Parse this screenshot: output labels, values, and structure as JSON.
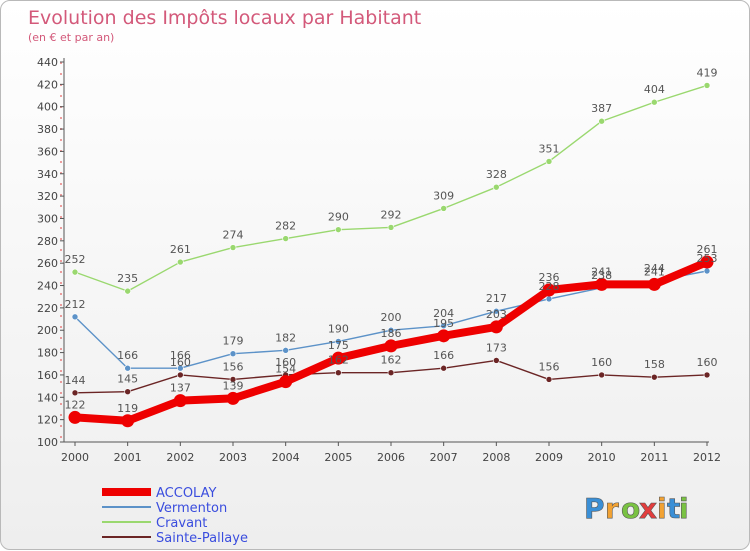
{
  "chart_data": {
    "type": "line",
    "title": "Evolution des Impôts locaux par Habitant",
    "subtitle": "(en € et par an)",
    "x": [
      "2000",
      "2001",
      "2002",
      "2003",
      "2004",
      "2005",
      "2006",
      "2007",
      "2008",
      "2009",
      "2010",
      "2011",
      "2012"
    ],
    "ylim": [
      100,
      440
    ],
    "yticks": [
      100,
      120,
      140,
      160,
      180,
      200,
      220,
      240,
      260,
      280,
      300,
      320,
      340,
      360,
      380,
      400,
      420,
      440
    ],
    "grid": false,
    "legend_position": "bottom-left",
    "series": [
      {
        "name": "ACCOLAY",
        "color": "#ee0000",
        "values": [
          122,
          119,
          137,
          139,
          154,
          175,
          186,
          195,
          203,
          236,
          241,
          241,
          261
        ],
        "thick": true
      },
      {
        "name": "Vermenton",
        "color": "#5c92c8",
        "values": [
          212,
          166,
          166,
          179,
          182,
          190,
          200,
          204,
          217,
          228,
          238,
          244,
          253
        ]
      },
      {
        "name": "Cravant",
        "color": "#9ad86f",
        "values": [
          252,
          235,
          261,
          274,
          282,
          290,
          292,
          309,
          328,
          351,
          387,
          404,
          419
        ]
      },
      {
        "name": "Sainte-Pallaye",
        "color": "#6b2525",
        "values": [
          144,
          145,
          160,
          156,
          160,
          162,
          162,
          166,
          173,
          156,
          160,
          158,
          160
        ]
      }
    ]
  },
  "logo": {
    "letters": [
      "P",
      "r",
      "o",
      "x",
      "i",
      "t",
      "i"
    ],
    "colors": [
      "#3a8fd6",
      "#f2a233",
      "#7ac243",
      "#e23d3d",
      "#f2a233",
      "#3a8fd6",
      "#7ac243"
    ]
  }
}
